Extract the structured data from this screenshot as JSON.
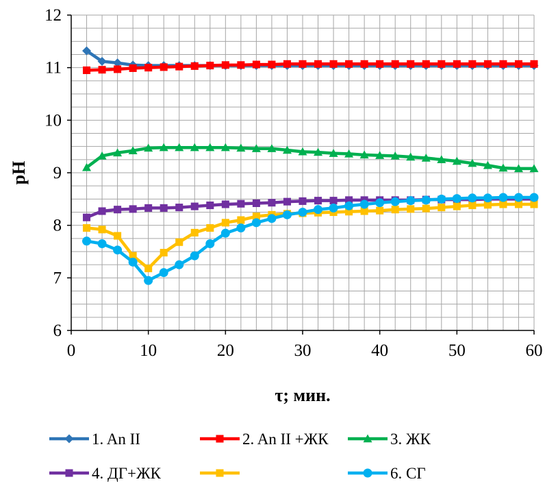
{
  "chart_data": {
    "type": "line",
    "xlabel": "τ; мин.",
    "ylabel": "pH",
    "xlim": [
      0,
      60
    ],
    "ylim": [
      6,
      12
    ],
    "x_ticks": [
      0,
      10,
      20,
      30,
      40,
      50,
      60
    ],
    "y_ticks": [
      6,
      7,
      8,
      9,
      10,
      11,
      12
    ],
    "grid": true,
    "legend_position": "bottom",
    "x": [
      2,
      4,
      6,
      8,
      10,
      12,
      14,
      16,
      18,
      20,
      22,
      24,
      26,
      28,
      30,
      32,
      34,
      36,
      38,
      40,
      42,
      44,
      46,
      48,
      50,
      52,
      54,
      56,
      58,
      60
    ],
    "series": [
      {
        "name": "1. An II",
        "color": "#2E75B6",
        "marker": "diamond",
        "values": [
          11.32,
          11.12,
          11.09,
          11.05,
          11.04,
          11.04,
          11.04,
          11.04,
          11.04,
          11.04,
          11.04,
          11.04,
          11.04,
          11.04,
          11.04,
          11.04,
          11.04,
          11.04,
          11.04,
          11.04,
          11.04,
          11.04,
          11.04,
          11.04,
          11.04,
          11.04,
          11.04,
          11.04,
          11.04,
          11.04
        ]
      },
      {
        "name": "2. An II +ЖК",
        "color": "#FF0000",
        "marker": "square",
        "values": [
          10.95,
          10.96,
          10.97,
          10.99,
          11.0,
          11.01,
          11.02,
          11.03,
          11.04,
          11.05,
          11.05,
          11.06,
          11.06,
          11.07,
          11.07,
          11.07,
          11.07,
          11.07,
          11.07,
          11.07,
          11.07,
          11.07,
          11.07,
          11.07,
          11.07,
          11.07,
          11.07,
          11.07,
          11.07,
          11.07
        ]
      },
      {
        "name": "3. ЖК",
        "color": "#00B050",
        "marker": "triangle",
        "values": [
          9.1,
          9.32,
          9.38,
          9.42,
          9.47,
          9.48,
          9.48,
          9.48,
          9.48,
          9.48,
          9.47,
          9.46,
          9.46,
          9.43,
          9.4,
          9.39,
          9.37,
          9.36,
          9.34,
          9.33,
          9.32,
          9.3,
          9.28,
          9.25,
          9.22,
          9.18,
          9.14,
          9.09,
          9.08,
          9.08
        ]
      },
      {
        "name": "4. ДГ+ЖК",
        "color": "#7030A0",
        "marker": "square",
        "values": [
          8.15,
          8.27,
          8.3,
          8.31,
          8.33,
          8.33,
          8.34,
          8.36,
          8.38,
          8.4,
          8.41,
          8.42,
          8.43,
          8.45,
          8.46,
          8.47,
          8.47,
          8.48,
          8.48,
          8.48,
          8.48,
          8.48,
          8.49,
          8.49,
          8.49,
          8.49,
          8.5,
          8.5,
          8.5,
          8.5
        ]
      },
      {
        "name": "",
        "color": "#FFC000",
        "marker": "square",
        "values": [
          7.95,
          7.92,
          7.8,
          7.42,
          7.18,
          7.48,
          7.68,
          7.86,
          7.95,
          8.05,
          8.1,
          8.17,
          8.2,
          8.22,
          8.23,
          8.24,
          8.25,
          8.26,
          8.27,
          8.28,
          8.3,
          8.31,
          8.32,
          8.34,
          8.36,
          8.38,
          8.39,
          8.4,
          8.4,
          8.4
        ]
      },
      {
        "name": "6. СГ",
        "color": "#00B0F0",
        "marker": "circle",
        "values": [
          7.7,
          7.65,
          7.53,
          7.3,
          6.95,
          7.1,
          7.25,
          7.42,
          7.65,
          7.85,
          7.95,
          8.05,
          8.13,
          8.2,
          8.25,
          8.3,
          8.33,
          8.37,
          8.4,
          8.43,
          8.45,
          8.47,
          8.48,
          8.5,
          8.51,
          8.52,
          8.52,
          8.53,
          8.53,
          8.53
        ]
      }
    ]
  }
}
